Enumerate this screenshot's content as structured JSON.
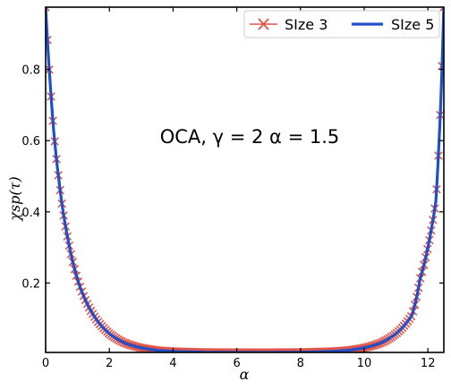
{
  "chart_data": {
    "type": "line",
    "annotation": "OCA, γ = 2 α = 1.5",
    "xlabel": "α",
    "ylabel": "χsp(τ)",
    "xlim": [
      0,
      12.5
    ],
    "ylim": [
      0.005,
      0.975
    ],
    "xticks": [
      0,
      2,
      4,
      6,
      8,
      10,
      12
    ],
    "xtick_labels": [
      "0",
      "2",
      "4",
      "6",
      "8",
      "10",
      "12"
    ],
    "yticks": [
      0.2,
      0.4,
      0.6,
      0.8
    ],
    "ytick_labels": [
      "0.2",
      "0.4",
      "0.6",
      "0.8"
    ],
    "grid": false,
    "legend_position": "top-right",
    "series": [
      {
        "name": "SIze 3",
        "color": "#e0554a",
        "style": "marker-x-line",
        "x": [
          0,
          0.25,
          0.5,
          0.75,
          1,
          1.5,
          2,
          2.5,
          3,
          3.5,
          4,
          5,
          6,
          6.25,
          7,
          8,
          9,
          9.5,
          10,
          10.5,
          11,
          11.25,
          11.5,
          11.75,
          12,
          12.25,
          12.5
        ],
        "y": [
          0.975,
          0.63,
          0.43,
          0.3,
          0.21,
          0.11,
          0.058,
          0.031,
          0.018,
          0.011,
          0.008,
          0.0055,
          0.005,
          0.005,
          0.005,
          0.0055,
          0.008,
          0.011,
          0.018,
          0.031,
          0.058,
          0.08,
          0.11,
          0.21,
          0.3,
          0.43,
          0.975
        ]
      },
      {
        "name": "SIze 5",
        "color": "#1f4fc9",
        "style": "solid-line",
        "x": [
          0,
          0.25,
          0.5,
          0.75,
          1,
          1.5,
          2,
          2.5,
          3,
          3.5,
          4,
          5,
          6,
          6.25,
          7,
          8,
          9,
          9.5,
          10,
          10.5,
          11,
          11.25,
          11.5,
          11.75,
          12,
          12.25,
          12.5
        ],
        "y": [
          0.975,
          0.63,
          0.43,
          0.3,
          0.21,
          0.11,
          0.058,
          0.031,
          0.018,
          0.011,
          0.008,
          0.0055,
          0.005,
          0.005,
          0.005,
          0.0055,
          0.008,
          0.011,
          0.018,
          0.031,
          0.058,
          0.08,
          0.11,
          0.21,
          0.3,
          0.43,
          0.975
        ]
      }
    ]
  }
}
